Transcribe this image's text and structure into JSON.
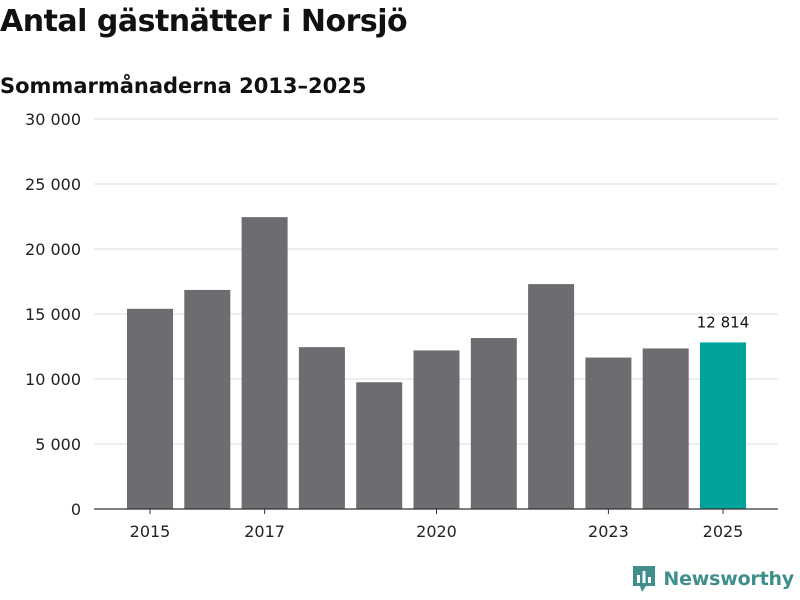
{
  "header": {
    "title": "Antal gästnätter i Norsjö",
    "subtitle": "Sommarmånaderna 2013–2025"
  },
  "brand": {
    "name": "Newsworthy",
    "icon": "bar-chart-logo-icon",
    "color": "#3f8f8c"
  },
  "chart_data": {
    "type": "bar",
    "categories": [
      "2015",
      "2016",
      "2017",
      "2018",
      "2019",
      "2020",
      "2021",
      "2022",
      "2023",
      "2024",
      "2025"
    ],
    "x_tick_labels": [
      "2015",
      "2017",
      "2020",
      "2023",
      "2025"
    ],
    "values": [
      15400,
      16850,
      22450,
      12450,
      9750,
      12200,
      13150,
      17300,
      11650,
      12350,
      12814
    ],
    "highlight": {
      "category": "2025",
      "label": "12 814"
    },
    "ylim": [
      0,
      30000
    ],
    "y_ticks": [
      0,
      5000,
      10000,
      15000,
      20000,
      25000,
      30000
    ],
    "y_tick_labels": [
      "0",
      "5 000",
      "10 000",
      "15 000",
      "20 000",
      "25 000",
      "30 000"
    ],
    "grid": true,
    "colors": {
      "bar": "#6d6c71",
      "highlight": "#00a39a",
      "grid": "#dddddd"
    }
  }
}
